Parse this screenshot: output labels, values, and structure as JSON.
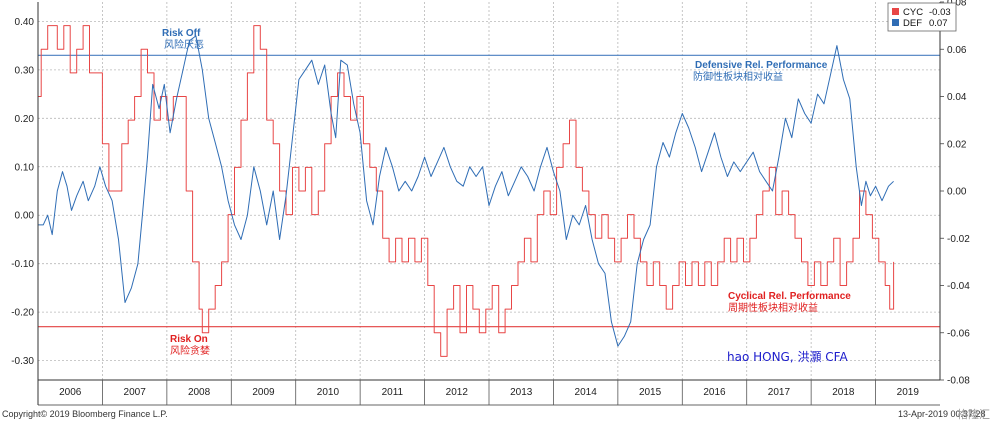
{
  "chart_data": {
    "type": "line",
    "x_axis": {
      "start_year": 2006,
      "end": "2019-04-13",
      "year_labels": [
        "2006",
        "2007",
        "2008",
        "2009",
        "2010",
        "2011",
        "2012",
        "2013",
        "2014",
        "2015",
        "2016",
        "2017",
        "2018",
        "2019"
      ]
    },
    "y_left": {
      "ticks": [
        "0.40",
        "0.30",
        "0.20",
        "0.10",
        "0.00",
        "-0.10",
        "-0.20",
        "-0.30"
      ],
      "range": [
        -0.34,
        0.44
      ]
    },
    "y_right": {
      "ticks": [
        "0.08",
        "0.06",
        "0.04",
        "0.02",
        "0.00",
        "-0.02",
        "-0.04",
        "-0.06",
        "-0.08"
      ],
      "range": [
        -0.08,
        0.08
      ]
    },
    "grid": true,
    "reference_lines": [
      {
        "axis": "left",
        "value": 0.33,
        "color": "#4a7fc1"
      },
      {
        "axis": "left",
        "value": -0.23,
        "color": "#e34040"
      }
    ],
    "series": [
      {
        "name": "DEF",
        "axis": "left",
        "color": "#2f6db5",
        "last_value": "0.07",
        "points": [
          [
            2006.0,
            -0.02
          ],
          [
            2006.08,
            -0.02
          ],
          [
            2006.15,
            0.0
          ],
          [
            2006.22,
            -0.04
          ],
          [
            2006.3,
            0.05
          ],
          [
            2006.38,
            0.09
          ],
          [
            2006.45,
            0.06
          ],
          [
            2006.52,
            0.01
          ],
          [
            2006.6,
            0.04
          ],
          [
            2006.7,
            0.07
          ],
          [
            2006.78,
            0.03
          ],
          [
            2006.88,
            0.06
          ],
          [
            2006.96,
            0.1
          ],
          [
            2007.05,
            0.06
          ],
          [
            2007.15,
            0.03
          ],
          [
            2007.25,
            -0.05
          ],
          [
            2007.35,
            -0.18
          ],
          [
            2007.45,
            -0.15
          ],
          [
            2007.55,
            -0.1
          ],
          [
            2007.62,
            0.0
          ],
          [
            2007.7,
            0.12
          ],
          [
            2007.78,
            0.27
          ],
          [
            2007.88,
            0.22
          ],
          [
            2007.96,
            0.27
          ],
          [
            2008.05,
            0.17
          ],
          [
            2008.15,
            0.24
          ],
          [
            2008.25,
            0.3
          ],
          [
            2008.35,
            0.36
          ],
          [
            2008.45,
            0.37
          ],
          [
            2008.55,
            0.3
          ],
          [
            2008.65,
            0.2
          ],
          [
            2008.75,
            0.15
          ],
          [
            2008.85,
            0.1
          ],
          [
            2008.95,
            0.03
          ],
          [
            2009.05,
            -0.02
          ],
          [
            2009.15,
            -0.05
          ],
          [
            2009.25,
            0.0
          ],
          [
            2009.35,
            0.1
          ],
          [
            2009.45,
            0.05
          ],
          [
            2009.55,
            -0.02
          ],
          [
            2009.65,
            0.05
          ],
          [
            2009.75,
            -0.05
          ],
          [
            2009.85,
            0.04
          ],
          [
            2009.95,
            0.16
          ],
          [
            2010.05,
            0.28
          ],
          [
            2010.15,
            0.3
          ],
          [
            2010.25,
            0.32
          ],
          [
            2010.35,
            0.27
          ],
          [
            2010.45,
            0.31
          ],
          [
            2010.55,
            0.21
          ],
          [
            2010.62,
            0.16
          ],
          [
            2010.7,
            0.32
          ],
          [
            2010.8,
            0.31
          ],
          [
            2010.9,
            0.23
          ],
          [
            2011.0,
            0.17
          ],
          [
            2011.1,
            0.03
          ],
          [
            2011.2,
            -0.02
          ],
          [
            2011.3,
            0.08
          ],
          [
            2011.4,
            0.14
          ],
          [
            2011.5,
            0.1
          ],
          [
            2011.6,
            0.05
          ],
          [
            2011.7,
            0.07
          ],
          [
            2011.8,
            0.05
          ],
          [
            2011.9,
            0.08
          ],
          [
            2012.0,
            0.12
          ],
          [
            2012.1,
            0.08
          ],
          [
            2012.2,
            0.11
          ],
          [
            2012.3,
            0.14
          ],
          [
            2012.4,
            0.1
          ],
          [
            2012.5,
            0.07
          ],
          [
            2012.6,
            0.06
          ],
          [
            2012.7,
            0.1
          ],
          [
            2012.8,
            0.08
          ],
          [
            2012.9,
            0.1
          ],
          [
            2013.0,
            0.02
          ],
          [
            2013.1,
            0.06
          ],
          [
            2013.2,
            0.09
          ],
          [
            2013.3,
            0.04
          ],
          [
            2013.4,
            0.07
          ],
          [
            2013.5,
            0.1
          ],
          [
            2013.6,
            0.08
          ],
          [
            2013.7,
            0.05
          ],
          [
            2013.8,
            0.1
          ],
          [
            2013.9,
            0.14
          ],
          [
            2014.0,
            0.09
          ],
          [
            2014.1,
            0.05
          ],
          [
            2014.2,
            -0.05
          ],
          [
            2014.3,
            0.0
          ],
          [
            2014.4,
            -0.02
          ],
          [
            2014.5,
            0.02
          ],
          [
            2014.6,
            -0.05
          ],
          [
            2014.7,
            -0.1
          ],
          [
            2014.8,
            -0.12
          ],
          [
            2014.9,
            -0.22
          ],
          [
            2015.0,
            -0.27
          ],
          [
            2015.1,
            -0.25
          ],
          [
            2015.2,
            -0.22
          ],
          [
            2015.3,
            -0.1
          ],
          [
            2015.4,
            -0.05
          ],
          [
            2015.5,
            -0.02
          ],
          [
            2015.6,
            0.1
          ],
          [
            2015.7,
            0.15
          ],
          [
            2015.8,
            0.12
          ],
          [
            2015.9,
            0.17
          ],
          [
            2016.0,
            0.21
          ],
          [
            2016.1,
            0.18
          ],
          [
            2016.2,
            0.14
          ],
          [
            2016.3,
            0.09
          ],
          [
            2016.4,
            0.13
          ],
          [
            2016.5,
            0.17
          ],
          [
            2016.6,
            0.12
          ],
          [
            2016.7,
            0.08
          ],
          [
            2016.8,
            0.11
          ],
          [
            2016.9,
            0.09
          ],
          [
            2017.0,
            0.11
          ],
          [
            2017.1,
            0.13
          ],
          [
            2017.2,
            0.09
          ],
          [
            2017.3,
            0.07
          ],
          [
            2017.4,
            0.05
          ],
          [
            2017.5,
            0.12
          ],
          [
            2017.6,
            0.2
          ],
          [
            2017.7,
            0.16
          ],
          [
            2017.8,
            0.24
          ],
          [
            2017.9,
            0.21
          ],
          [
            2018.0,
            0.19
          ],
          [
            2018.1,
            0.25
          ],
          [
            2018.2,
            0.23
          ],
          [
            2018.3,
            0.29
          ],
          [
            2018.4,
            0.35
          ],
          [
            2018.5,
            0.28
          ],
          [
            2018.6,
            0.24
          ],
          [
            2018.7,
            0.1
          ],
          [
            2018.78,
            0.02
          ],
          [
            2018.85,
            0.07
          ],
          [
            2018.92,
            0.04
          ],
          [
            2019.0,
            0.06
          ],
          [
            2019.1,
            0.03
          ],
          [
            2019.2,
            0.06
          ],
          [
            2019.28,
            0.07
          ]
        ]
      },
      {
        "name": "CYC",
        "axis": "right",
        "color": "#e84646",
        "last_value": "-0.03",
        "points": [
          [
            2006.0,
            0.04
          ],
          [
            2006.05,
            0.06
          ],
          [
            2006.15,
            0.07
          ],
          [
            2006.3,
            0.06
          ],
          [
            2006.4,
            0.07
          ],
          [
            2006.5,
            0.05
          ],
          [
            2006.6,
            0.06
          ],
          [
            2006.7,
            0.07
          ],
          [
            2006.8,
            0.05
          ],
          [
            2006.9,
            0.05
          ],
          [
            2007.0,
            0.02
          ],
          [
            2007.1,
            0.0
          ],
          [
            2007.2,
            0.0
          ],
          [
            2007.3,
            0.02
          ],
          [
            2007.4,
            0.03
          ],
          [
            2007.5,
            0.04
          ],
          [
            2007.6,
            0.06
          ],
          [
            2007.7,
            0.05
          ],
          [
            2007.8,
            0.03
          ],
          [
            2007.9,
            0.04
          ],
          [
            2008.0,
            0.03
          ],
          [
            2008.1,
            0.04
          ],
          [
            2008.2,
            0.04
          ],
          [
            2008.3,
            0.0
          ],
          [
            2008.4,
            -0.03
          ],
          [
            2008.5,
            -0.05
          ],
          [
            2008.55,
            -0.06
          ],
          [
            2008.65,
            -0.05
          ],
          [
            2008.75,
            -0.04
          ],
          [
            2008.85,
            -0.03
          ],
          [
            2008.95,
            -0.01
          ],
          [
            2009.05,
            0.01
          ],
          [
            2009.15,
            0.03
          ],
          [
            2009.25,
            0.05
          ],
          [
            2009.35,
            0.07
          ],
          [
            2009.45,
            0.06
          ],
          [
            2009.55,
            0.03
          ],
          [
            2009.65,
            0.02
          ],
          [
            2009.75,
            0.0
          ],
          [
            2009.85,
            -0.01
          ],
          [
            2009.95,
            0.01
          ],
          [
            2010.05,
            0.0
          ],
          [
            2010.15,
            0.01
          ],
          [
            2010.25,
            -0.01
          ],
          [
            2010.35,
            0.0
          ],
          [
            2010.45,
            0.02
          ],
          [
            2010.55,
            0.04
          ],
          [
            2010.65,
            0.05
          ],
          [
            2010.75,
            0.04
          ],
          [
            2010.85,
            0.03
          ],
          [
            2010.95,
            0.04
          ],
          [
            2011.05,
            0.02
          ],
          [
            2011.15,
            0.01
          ],
          [
            2011.25,
            0.0
          ],
          [
            2011.35,
            -0.02
          ],
          [
            2011.45,
            -0.03
          ],
          [
            2011.55,
            -0.02
          ],
          [
            2011.65,
            -0.03
          ],
          [
            2011.75,
            -0.02
          ],
          [
            2011.85,
            -0.03
          ],
          [
            2011.95,
            -0.02
          ],
          [
            2012.05,
            -0.04
          ],
          [
            2012.15,
            -0.06
          ],
          [
            2012.25,
            -0.07
          ],
          [
            2012.35,
            -0.05
          ],
          [
            2012.45,
            -0.04
          ],
          [
            2012.55,
            -0.06
          ],
          [
            2012.65,
            -0.04
          ],
          [
            2012.75,
            -0.05
          ],
          [
            2012.85,
            -0.06
          ],
          [
            2012.95,
            -0.05
          ],
          [
            2013.05,
            -0.04
          ],
          [
            2013.15,
            -0.06
          ],
          [
            2013.25,
            -0.05
          ],
          [
            2013.35,
            -0.04
          ],
          [
            2013.45,
            -0.03
          ],
          [
            2013.55,
            -0.02
          ],
          [
            2013.65,
            -0.03
          ],
          [
            2013.75,
            -0.01
          ],
          [
            2013.85,
            0.0
          ],
          [
            2013.95,
            -0.01
          ],
          [
            2014.05,
            0.01
          ],
          [
            2014.15,
            0.02
          ],
          [
            2014.25,
            0.03
          ],
          [
            2014.35,
            0.01
          ],
          [
            2014.45,
            0.0
          ],
          [
            2014.55,
            -0.01
          ],
          [
            2014.65,
            -0.02
          ],
          [
            2014.75,
            -0.01
          ],
          [
            2014.85,
            -0.02
          ],
          [
            2014.95,
            -0.03
          ],
          [
            2015.05,
            -0.02
          ],
          [
            2015.15,
            -0.01
          ],
          [
            2015.25,
            -0.02
          ],
          [
            2015.35,
            -0.03
          ],
          [
            2015.45,
            -0.04
          ],
          [
            2015.55,
            -0.03
          ],
          [
            2015.65,
            -0.04
          ],
          [
            2015.75,
            -0.05
          ],
          [
            2015.85,
            -0.04
          ],
          [
            2015.95,
            -0.03
          ],
          [
            2016.05,
            -0.04
          ],
          [
            2016.15,
            -0.03
          ],
          [
            2016.25,
            -0.04
          ],
          [
            2016.35,
            -0.03
          ],
          [
            2016.45,
            -0.04
          ],
          [
            2016.55,
            -0.03
          ],
          [
            2016.65,
            -0.02
          ],
          [
            2016.75,
            -0.03
          ],
          [
            2016.85,
            -0.02
          ],
          [
            2016.95,
            -0.03
          ],
          [
            2017.05,
            -0.02
          ],
          [
            2017.15,
            -0.01
          ],
          [
            2017.25,
            0.0
          ],
          [
            2017.35,
            0.01
          ],
          [
            2017.45,
            -0.01
          ],
          [
            2017.55,
            0.0
          ],
          [
            2017.65,
            -0.01
          ],
          [
            2017.75,
            -0.02
          ],
          [
            2017.85,
            -0.03
          ],
          [
            2017.95,
            -0.04
          ],
          [
            2018.05,
            -0.03
          ],
          [
            2018.15,
            -0.04
          ],
          [
            2018.25,
            -0.03
          ],
          [
            2018.35,
            -0.02
          ],
          [
            2018.45,
            -0.04
          ],
          [
            2018.55,
            -0.03
          ],
          [
            2018.65,
            -0.02
          ],
          [
            2018.75,
            0.0
          ],
          [
            2018.85,
            -0.01
          ],
          [
            2018.95,
            -0.02
          ],
          [
            2019.05,
            -0.03
          ],
          [
            2019.15,
            -0.04
          ],
          [
            2019.22,
            -0.05
          ],
          [
            2019.28,
            -0.03
          ]
        ]
      }
    ],
    "annotations": [
      {
        "lines": [
          "Risk Off",
          "风险厌恶"
        ],
        "color": "#2f6db5"
      },
      {
        "lines": [
          "Defensive Rel. Performance",
          "防御性板块相对收益"
        ],
        "color": "#2f6db5"
      },
      {
        "lines": [
          "Risk On",
          "风险贪婪"
        ],
        "color": "#e02020"
      },
      {
        "lines": [
          "Cyclical Rel. Performance",
          "周期性板块相对收益"
        ],
        "color": "#e02020"
      }
    ],
    "author": "hao HONG, 洪灝 CFA",
    "footer_left": "Copyright© 2019 Bloomberg Finance L.P.",
    "footer_right": "13-Apr-2019 00:37:28",
    "watermark": "格隆汇"
  }
}
